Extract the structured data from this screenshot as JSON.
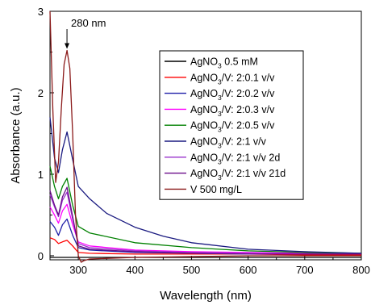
{
  "chart_data": {
    "type": "line",
    "xlabel": "Wavelength (nm)",
    "ylabel": "Absorbance (a.u.)",
    "xlim": [
      250,
      800
    ],
    "ylim": [
      -0.05,
      3.0
    ],
    "x_ticks": [
      300,
      400,
      500,
      600,
      700,
      800
    ],
    "y_ticks": [
      0,
      1,
      2,
      3
    ],
    "grid": false,
    "legend_position": "top-right",
    "annotation": {
      "text": "280 nm",
      "x": 280,
      "y": 2.52
    },
    "series": [
      {
        "name": "AgNO3 0.5 mM",
        "name_main": "AgNO",
        "name_sub": "3",
        "name_rest": " 0.5 mM",
        "color": "#000000",
        "x": [
          250,
          280,
          300,
          400,
          500,
          600,
          700,
          800
        ],
        "y": [
          -0.02,
          -0.02,
          -0.02,
          -0.02,
          -0.02,
          -0.02,
          -0.02,
          -0.02
        ]
      },
      {
        "name": "AgNO3/V: 2:0.1 v/v",
        "name_main": "AgNO",
        "name_sub": "3",
        "name_rest": "/V: 2:0.1 v/v",
        "color": "#ff0000",
        "x": [
          250,
          258,
          265,
          272,
          280,
          290,
          300,
          320,
          400,
          500,
          600,
          700,
          800
        ],
        "y": [
          0.22,
          0.2,
          0.15,
          0.17,
          0.19,
          0.12,
          0.04,
          0.03,
          0.02,
          0.02,
          0.02,
          0.01,
          0.01
        ]
      },
      {
        "name": "AgNO3/V: 2:0.2 v/v",
        "name_main": "AgNO",
        "name_sub": "3",
        "name_rest": "/V: 2:0.2 v/v",
        "color": "#1f1fa8",
        "x": [
          250,
          258,
          265,
          272,
          280,
          290,
          300,
          320,
          400,
          500,
          600,
          700,
          800
        ],
        "y": [
          0.42,
          0.35,
          0.25,
          0.38,
          0.45,
          0.25,
          0.1,
          0.07,
          0.04,
          0.03,
          0.02,
          0.02,
          0.02
        ]
      },
      {
        "name": "AgNO3/V: 2:0.3 v/v",
        "name_main": "AgNO",
        "name_sub": "3",
        "name_rest": "/V: 2:0.3 v/v",
        "color": "#ff00ff",
        "x": [
          250,
          258,
          265,
          272,
          280,
          290,
          300,
          320,
          400,
          500,
          600,
          700,
          800
        ],
        "y": [
          0.6,
          0.5,
          0.4,
          0.55,
          0.63,
          0.38,
          0.17,
          0.12,
          0.07,
          0.05,
          0.04,
          0.03,
          0.02
        ]
      },
      {
        "name": "AgNO3/V: 2:0.5 v/v",
        "name_main": "AgNO",
        "name_sub": "3",
        "name_rest": "/V: 2:0.5 v/v",
        "color": "#008000",
        "x": [
          250,
          258,
          265,
          272,
          280,
          290,
          300,
          320,
          400,
          500,
          600,
          700,
          800
        ],
        "y": [
          1.1,
          0.85,
          0.7,
          0.85,
          0.95,
          0.62,
          0.36,
          0.28,
          0.16,
          0.1,
          0.06,
          0.04,
          0.03
        ]
      },
      {
        "name": "AgNO3/V: 2:1 v/v",
        "name_main": "AgNO",
        "name_sub": "3",
        "name_rest": "/V: 2:1 v/v",
        "color": "#1a1a80",
        "x": [
          250,
          258,
          265,
          272,
          280,
          290,
          300,
          320,
          350,
          400,
          450,
          500,
          600,
          700,
          800
        ],
        "y": [
          1.7,
          1.2,
          1.02,
          1.3,
          1.52,
          1.18,
          0.85,
          0.7,
          0.52,
          0.35,
          0.24,
          0.16,
          0.08,
          0.05,
          0.03
        ]
      },
      {
        "name": "AgNO3/V: 2:1 v/v 2d",
        "name_main": "AgNO",
        "name_sub": "3",
        "name_rest": "/V: 2:1 v/v 2d",
        "color": "#9932cc",
        "x": [
          250,
          258,
          265,
          272,
          280,
          290,
          300,
          320,
          400,
          500,
          600,
          700,
          800
        ],
        "y": [
          0.75,
          0.6,
          0.48,
          0.68,
          0.78,
          0.45,
          0.15,
          0.1,
          0.06,
          0.04,
          0.03,
          0.02,
          0.02
        ]
      },
      {
        "name": "AgNO3/V: 2:1 v/v 21d",
        "name_main": "AgNO",
        "name_sub": "3",
        "name_rest": "/V: 2:1 v/v 21d",
        "color": "#6a0d8a",
        "x": [
          250,
          258,
          265,
          272,
          280,
          290,
          300,
          320,
          400,
          500,
          600,
          700,
          800
        ],
        "y": [
          0.8,
          0.62,
          0.5,
          0.72,
          0.84,
          0.48,
          0.12,
          0.08,
          0.05,
          0.03,
          0.02,
          0.02,
          0.02
        ]
      },
      {
        "name": "V 500 mg/L",
        "name_main": "V 500 mg/L",
        "name_sub": "",
        "name_rest": "",
        "color": "#8b1a1a",
        "x": [
          250,
          255,
          260,
          265,
          270,
          275,
          280,
          285,
          290,
          295,
          300,
          305,
          310,
          320,
          400,
          500,
          600,
          700,
          800
        ],
        "y": [
          3.0,
          1.8,
          0.9,
          1.15,
          1.8,
          2.35,
          2.52,
          2.3,
          1.5,
          0.5,
          0.0,
          -0.08,
          -0.06,
          -0.04,
          -0.02,
          -0.01,
          0.0,
          0.0,
          0.0
        ]
      }
    ]
  }
}
